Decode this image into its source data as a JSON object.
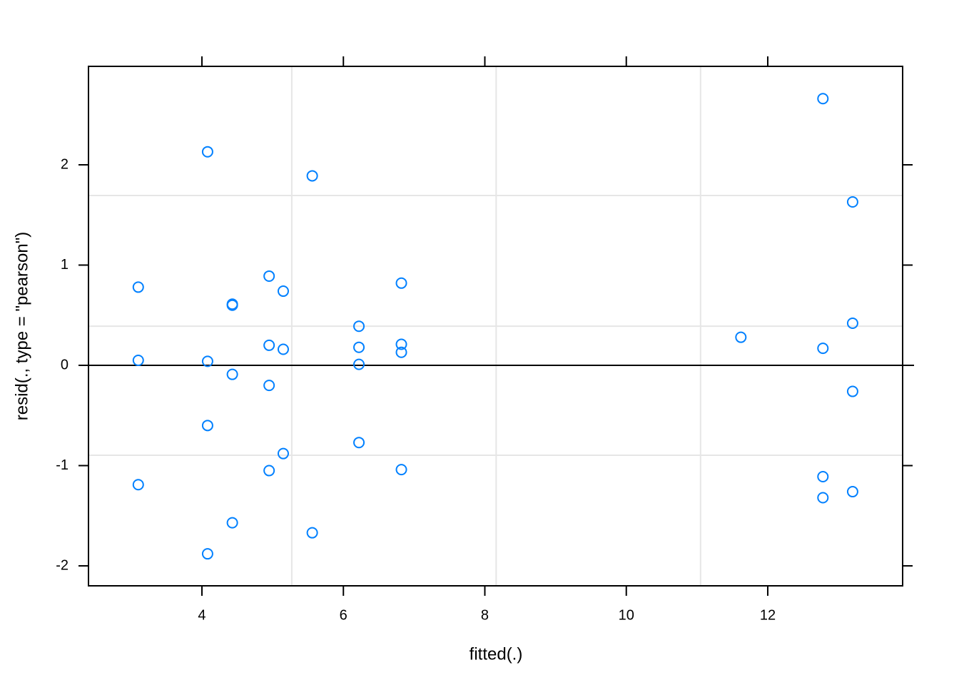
{
  "chart_data": {
    "type": "scatter",
    "xlabel": "fitted(.)",
    "ylabel": "resid(., type = \"pearson\")",
    "xlim": [
      2.396,
      13.907
    ],
    "ylim": [
      -2.199,
      2.982
    ],
    "xticks": [
      4,
      6,
      8,
      10,
      12
    ],
    "yticks": [
      -2,
      -1,
      0,
      1,
      2
    ],
    "grid": true,
    "xgrid": [
      5.27,
      8.16,
      11.05
    ],
    "ygrid": [
      -0.897,
      0.391,
      1.694
    ],
    "hline": 0,
    "color": "#0080ff",
    "x": [
      12.78,
      4.08,
      5.56,
      13.2,
      3.1,
      4.95,
      5.15,
      4.43,
      4.43,
      6.82,
      6.22,
      11.62,
      13.2,
      12.78,
      3.1,
      4.08,
      4.95,
      5.15,
      6.22,
      6.82,
      6.82,
      6.22,
      4.43,
      4.95,
      13.2,
      4.08,
      5.15,
      6.22,
      4.95,
      6.82,
      12.78,
      13.2,
      12.78,
      3.1,
      4.43,
      5.56,
      4.08
    ],
    "y": [
      2.66,
      2.13,
      1.89,
      1.63,
      0.78,
      0.89,
      0.74,
      0.61,
      0.6,
      0.82,
      0.39,
      0.28,
      0.42,
      0.17,
      0.05,
      0.04,
      0.2,
      0.16,
      0.18,
      0.21,
      0.13,
      0.01,
      -0.09,
      -0.2,
      -0.26,
      -0.6,
      -0.88,
      -0.77,
      -1.05,
      -1.04,
      -1.11,
      -1.26,
      -1.32,
      -1.19,
      -1.57,
      -1.67,
      -1.88
    ]
  }
}
